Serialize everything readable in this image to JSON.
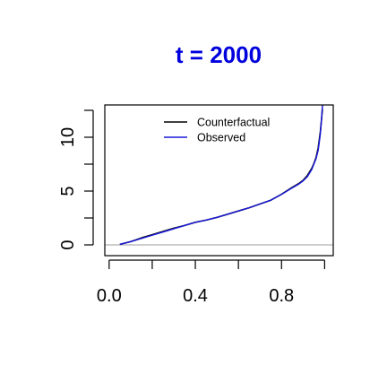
{
  "colors": {
    "title": "#0000dd",
    "observed": "#1a1ad6",
    "counterfactual": "#000000",
    "baseline": "#b0b0b0",
    "axis": "#000000"
  },
  "chart_data": {
    "type": "line",
    "title": "t = 2000",
    "xlabel": "",
    "ylabel": "",
    "xlim": [
      -0.02,
      1.04
    ],
    "ylim": [
      -1.0,
      13.0
    ],
    "x_ticks": [
      0.0,
      0.2,
      0.4,
      0.6,
      0.8,
      1.0
    ],
    "x_tick_labels": [
      "0.0",
      "",
      "0.4",
      "",
      "0.8",
      ""
    ],
    "y_ticks": [
      0,
      2.5,
      5,
      7.5,
      10,
      12.5
    ],
    "y_tick_labels": [
      "0",
      "",
      "5",
      "",
      "10",
      ""
    ],
    "baseline_y": 0,
    "legend_position": "top-center",
    "series": [
      {
        "name": "Counterfactual",
        "color_key": "counterfactual",
        "x": [
          0.05,
          0.1,
          0.15,
          0.2,
          0.25,
          0.3,
          0.35,
          0.4,
          0.45,
          0.5,
          0.55,
          0.6,
          0.65,
          0.7,
          0.75,
          0.8,
          0.85,
          0.88,
          0.9,
          0.92,
          0.94,
          0.95,
          0.96,
          0.97,
          0.98,
          0.99
        ],
        "y": [
          0.05,
          0.3,
          0.65,
          0.95,
          1.25,
          1.55,
          1.8,
          2.1,
          2.3,
          2.55,
          2.85,
          3.15,
          3.45,
          3.8,
          4.15,
          4.7,
          5.35,
          5.7,
          6.0,
          6.45,
          7.1,
          7.55,
          8.1,
          9.0,
          10.5,
          12.6
        ]
      },
      {
        "name": "Observed",
        "color_key": "observed",
        "x": [
          0.05,
          0.1,
          0.15,
          0.2,
          0.25,
          0.3,
          0.35,
          0.4,
          0.45,
          0.5,
          0.55,
          0.6,
          0.65,
          0.7,
          0.75,
          0.8,
          0.85,
          0.88,
          0.9,
          0.92,
          0.94,
          0.95,
          0.96,
          0.97,
          0.98,
          0.985,
          0.99,
          0.995
        ],
        "y": [
          0.05,
          0.3,
          0.6,
          0.9,
          1.2,
          1.5,
          1.8,
          2.1,
          2.3,
          2.55,
          2.85,
          3.15,
          3.45,
          3.8,
          4.15,
          4.7,
          5.3,
          5.65,
          5.95,
          6.35,
          7.0,
          7.5,
          8.0,
          8.8,
          10.3,
          11.5,
          13.0,
          14.0
        ]
      }
    ]
  }
}
